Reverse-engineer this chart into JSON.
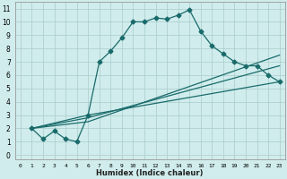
{
  "title": "",
  "xlabel": "Humidex (Indice chaleur)",
  "ylabel": "",
  "bg_color": "#d0ecec",
  "grid_color": "#aacccc",
  "line_color": "#1a6b6b",
  "xlim": [
    -0.5,
    23.5
  ],
  "ylim": [
    -0.3,
    11.5
  ],
  "xticks": [
    0,
    1,
    2,
    3,
    4,
    5,
    6,
    7,
    8,
    9,
    10,
    11,
    12,
    13,
    14,
    15,
    16,
    17,
    18,
    19,
    20,
    21,
    22,
    23
  ],
  "yticks": [
    0,
    1,
    2,
    3,
    4,
    5,
    6,
    7,
    8,
    9,
    10,
    11
  ],
  "line1_x": [
    1,
    2,
    3,
    4,
    5,
    6,
    7,
    8,
    9,
    10,
    11,
    12,
    13,
    14,
    15,
    16,
    17,
    18,
    19,
    20,
    21,
    22,
    23
  ],
  "line1_y": [
    2.0,
    1.2,
    1.8,
    1.2,
    1.0,
    3.0,
    7.0,
    7.8,
    8.8,
    10.0,
    10.0,
    10.3,
    10.2,
    10.5,
    10.9,
    9.3,
    8.2,
    7.6,
    7.0,
    6.7,
    6.7,
    6.0,
    5.5
  ],
  "line2_x": [
    1,
    6,
    23
  ],
  "line2_y": [
    2.0,
    3.0,
    5.5
  ],
  "line3_x": [
    1,
    6,
    23
  ],
  "line3_y": [
    2.0,
    2.8,
    6.7
  ],
  "line4_x": [
    1,
    6,
    23
  ],
  "line4_y": [
    2.0,
    2.5,
    7.5
  ],
  "marker": "D",
  "markersize": 2.5,
  "linewidth": 0.9,
  "xlabel_fontsize": 6.0,
  "tick_fontsize_x": 4.5,
  "tick_fontsize_y": 5.5
}
